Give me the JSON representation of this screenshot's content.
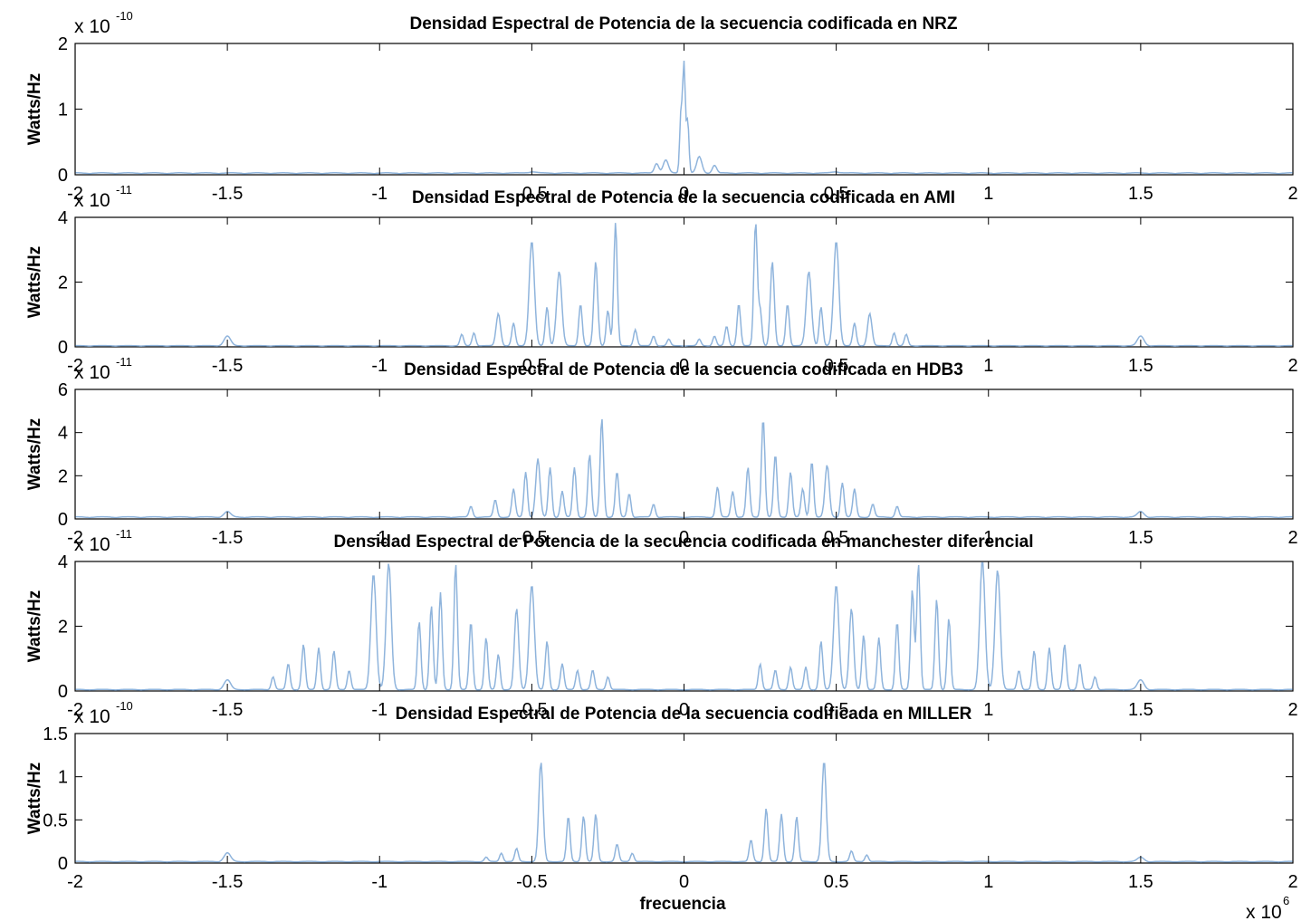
{
  "figure": {
    "xlabel": "frecuencia",
    "x_multiplier": "x 10",
    "x_multiplier_exp": "6",
    "line_color": "#8fb4dc"
  },
  "chart_data": [
    {
      "type": "line",
      "title": "Densidad Espectral de Potencia de la secuencia codificada en NRZ",
      "ylabel": "Watts/Hz",
      "y_multiplier": "x 10",
      "y_multiplier_exp": "-10",
      "xlim": [
        -2,
        2
      ],
      "ylim": [
        0,
        2
      ],
      "xticks": [
        "-2",
        "-1.5",
        "-1",
        "-0.5",
        "0",
        "0.5",
        "1",
        "1.5",
        "2"
      ],
      "yticks": [
        "0",
        "1",
        "2"
      ],
      "ytick_values": [
        0,
        1,
        2
      ],
      "base": 0.03,
      "peaks": [
        [
          0.0,
          1.65,
          0.006
        ],
        [
          -0.01,
          0.9,
          0.006
        ],
        [
          0.012,
          0.8,
          0.006
        ],
        [
          -0.06,
          0.2,
          0.012
        ],
        [
          0.05,
          0.25,
          0.012
        ],
        [
          -0.09,
          0.15,
          0.01
        ],
        [
          0.1,
          0.12,
          0.01
        ],
        [
          -0.5,
          0.02,
          0.02
        ],
        [
          0.5,
          0.02,
          0.02
        ]
      ]
    },
    {
      "type": "line",
      "title": "Densidad Espectral de Potencia de la secuencia codificada en AMI",
      "ylabel": "Watts/Hz",
      "y_multiplier": "x 10",
      "y_multiplier_exp": "-11",
      "xlim": [
        -2,
        2
      ],
      "ylim": [
        0,
        4
      ],
      "xticks": [
        "-2",
        "-1.5",
        "-1",
        "-0.5",
        "0",
        "0.5",
        "1",
        "1.5",
        "2"
      ],
      "yticks": [
        "0",
        "2",
        "4"
      ],
      "ytick_values": [
        0,
        2,
        4
      ],
      "base": 0.04,
      "peaks": [
        [
          -0.5,
          3.25,
          0.012
        ],
        [
          -0.41,
          2.3,
          0.012
        ],
        [
          -0.34,
          1.3,
          0.008
        ],
        [
          -0.29,
          2.6,
          0.009
        ],
        [
          -0.25,
          1.1,
          0.008
        ],
        [
          -0.225,
          3.8,
          0.008
        ],
        [
          -0.16,
          0.5,
          0.008
        ],
        [
          -0.61,
          1.0,
          0.01
        ],
        [
          -0.56,
          0.7,
          0.008
        ],
        [
          -0.45,
          1.2,
          0.008
        ],
        [
          -0.69,
          0.4,
          0.008
        ],
        [
          -0.73,
          0.35,
          0.008
        ],
        [
          -0.1,
          0.3,
          0.008
        ],
        [
          -0.05,
          0.2,
          0.008
        ],
        [
          0.5,
          3.25,
          0.012
        ],
        [
          0.41,
          2.3,
          0.012
        ],
        [
          0.34,
          1.3,
          0.008
        ],
        [
          0.29,
          2.6,
          0.009
        ],
        [
          0.25,
          1.1,
          0.008
        ],
        [
          0.235,
          3.8,
          0.008
        ],
        [
          0.18,
          1.3,
          0.008
        ],
        [
          0.14,
          0.6,
          0.008
        ],
        [
          0.61,
          1.0,
          0.01
        ],
        [
          0.56,
          0.7,
          0.008
        ],
        [
          0.45,
          1.2,
          0.008
        ],
        [
          0.69,
          0.4,
          0.008
        ],
        [
          0.73,
          0.35,
          0.008
        ],
        [
          0.1,
          0.3,
          0.008
        ],
        [
          0.05,
          0.2,
          0.008
        ],
        [
          -1.5,
          0.3,
          0.015
        ],
        [
          1.5,
          0.3,
          0.015
        ]
      ]
    },
    {
      "type": "line",
      "title": "Densidad Espectral de Potencia de la secuencia codificada en HDB3",
      "ylabel": "Watts/Hz",
      "y_multiplier": "x 10",
      "y_multiplier_exp": "-11",
      "xlim": [
        -2,
        2
      ],
      "ylim": [
        0,
        6
      ],
      "xticks": [
        "-2",
        "-1.5",
        "-1",
        "-0.5",
        "0",
        "0.5",
        "1",
        "1.5",
        "2"
      ],
      "yticks": [
        "0",
        "2",
        "4",
        "6"
      ],
      "ytick_values": [
        0,
        2,
        4,
        6
      ],
      "base": 0.1,
      "peaks": [
        [
          -0.27,
          4.6,
          0.008
        ],
        [
          -0.31,
          2.9,
          0.008
        ],
        [
          -0.22,
          2.1,
          0.008
        ],
        [
          -0.36,
          2.3,
          0.008
        ],
        [
          -0.44,
          2.3,
          0.008
        ],
        [
          -0.48,
          2.7,
          0.01
        ],
        [
          -0.52,
          2.1,
          0.008
        ],
        [
          -0.56,
          1.3,
          0.008
        ],
        [
          -0.4,
          1.2,
          0.008
        ],
        [
          -0.18,
          1.1,
          0.008
        ],
        [
          -0.62,
          0.8,
          0.008
        ],
        [
          -0.7,
          0.5,
          0.008
        ],
        [
          -0.1,
          0.6,
          0.008
        ],
        [
          0.26,
          4.6,
          0.008
        ],
        [
          0.3,
          2.9,
          0.008
        ],
        [
          0.21,
          2.3,
          0.008
        ],
        [
          0.35,
          2.1,
          0.008
        ],
        [
          0.42,
          2.6,
          0.008
        ],
        [
          0.47,
          2.4,
          0.01
        ],
        [
          0.52,
          1.6,
          0.008
        ],
        [
          0.56,
          1.3,
          0.008
        ],
        [
          0.39,
          1.3,
          0.008
        ],
        [
          0.16,
          1.2,
          0.008
        ],
        [
          0.11,
          1.4,
          0.008
        ],
        [
          0.62,
          0.6,
          0.008
        ],
        [
          0.7,
          0.5,
          0.008
        ],
        [
          -1.5,
          0.25,
          0.015
        ],
        [
          1.5,
          0.25,
          0.015
        ]
      ]
    },
    {
      "type": "line",
      "title": "Densidad Espectral de Potencia de la secuencia codificada en manchester diferencial",
      "ylabel": "Watts/Hz",
      "y_multiplier": "x 10",
      "y_multiplier_exp": "-11",
      "xlim": [
        -2,
        2
      ],
      "ylim": [
        0,
        4
      ],
      "xticks": [
        "-2",
        "-1.5",
        "-1",
        "-0.5",
        "0",
        "0.5",
        "1",
        "1.5",
        "2"
      ],
      "yticks": [
        "0",
        "2",
        "4"
      ],
      "ytick_values": [
        0,
        2,
        4
      ],
      "base": 0.05,
      "peaks": [
        [
          -1.02,
          3.6,
          0.012
        ],
        [
          -0.97,
          3.9,
          0.012
        ],
        [
          -0.75,
          3.9,
          0.008
        ],
        [
          -0.8,
          3.0,
          0.008
        ],
        [
          -0.83,
          2.6,
          0.008
        ],
        [
          -0.87,
          2.1,
          0.008
        ],
        [
          -0.7,
          2.1,
          0.008
        ],
        [
          -0.65,
          1.6,
          0.008
        ],
        [
          -0.61,
          1.1,
          0.008
        ],
        [
          -0.55,
          2.5,
          0.01
        ],
        [
          -0.5,
          3.25,
          0.012
        ],
        [
          -0.45,
          1.5,
          0.008
        ],
        [
          -0.4,
          0.8,
          0.008
        ],
        [
          -0.35,
          0.6,
          0.008
        ],
        [
          -0.3,
          0.6,
          0.008
        ],
        [
          -0.25,
          0.4,
          0.008
        ],
        [
          -1.25,
          1.4,
          0.008
        ],
        [
          -1.2,
          1.3,
          0.008
        ],
        [
          -1.15,
          1.2,
          0.008
        ],
        [
          -1.3,
          0.8,
          0.008
        ],
        [
          -1.1,
          0.6,
          0.008
        ],
        [
          -1.35,
          0.4,
          0.008
        ],
        [
          -1.5,
          0.3,
          0.015
        ],
        [
          0.98,
          4.0,
          0.012
        ],
        [
          1.03,
          3.7,
          0.012
        ],
        [
          0.77,
          3.9,
          0.008
        ],
        [
          0.75,
          3.1,
          0.008
        ],
        [
          0.83,
          2.8,
          0.008
        ],
        [
          0.87,
          2.2,
          0.008
        ],
        [
          0.7,
          2.1,
          0.008
        ],
        [
          0.64,
          1.6,
          0.008
        ],
        [
          0.59,
          1.7,
          0.008
        ],
        [
          0.55,
          2.5,
          0.01
        ],
        [
          0.5,
          3.25,
          0.012
        ],
        [
          0.45,
          1.5,
          0.008
        ],
        [
          0.4,
          0.7,
          0.008
        ],
        [
          0.35,
          0.7,
          0.008
        ],
        [
          0.3,
          0.6,
          0.008
        ],
        [
          0.25,
          0.8,
          0.008
        ],
        [
          1.25,
          1.4,
          0.008
        ],
        [
          1.2,
          1.3,
          0.008
        ],
        [
          1.15,
          1.2,
          0.008
        ],
        [
          1.3,
          0.8,
          0.008
        ],
        [
          1.1,
          0.6,
          0.008
        ],
        [
          1.35,
          0.4,
          0.008
        ],
        [
          1.5,
          0.3,
          0.015
        ]
      ]
    },
    {
      "type": "line",
      "title": "Densidad Espectral de Potencia de la secuencia codificada en MILLER",
      "ylabel": "Watts/Hz",
      "y_multiplier": "x 10",
      "y_multiplier_exp": "-10",
      "xlim": [
        -2,
        2
      ],
      "ylim": [
        0,
        1.5
      ],
      "xticks": [
        "-2",
        "-1.5",
        "-1",
        "-0.5",
        "0",
        "0.5",
        "1",
        "1.5",
        "2"
      ],
      "yticks": [
        "0",
        "0.5",
        "1",
        "1.5"
      ],
      "ytick_values": [
        0,
        0.5,
        1,
        1.5
      ],
      "base": 0.02,
      "peaks": [
        [
          -0.47,
          1.15,
          0.01
        ],
        [
          -0.38,
          0.52,
          0.008
        ],
        [
          -0.33,
          0.53,
          0.008
        ],
        [
          -0.29,
          0.55,
          0.008
        ],
        [
          -0.22,
          0.2,
          0.008
        ],
        [
          -0.17,
          0.1,
          0.008
        ],
        [
          -0.55,
          0.15,
          0.008
        ],
        [
          -0.6,
          0.1,
          0.008
        ],
        [
          -0.65,
          0.05,
          0.008
        ],
        [
          0.46,
          1.17,
          0.01
        ],
        [
          0.27,
          0.62,
          0.008
        ],
        [
          0.32,
          0.55,
          0.008
        ],
        [
          0.37,
          0.52,
          0.008
        ],
        [
          0.22,
          0.25,
          0.008
        ],
        [
          0.55,
          0.12,
          0.008
        ],
        [
          0.6,
          0.08,
          0.008
        ],
        [
          -1.5,
          0.1,
          0.015
        ],
        [
          1.5,
          0.05,
          0.015
        ]
      ]
    }
  ]
}
